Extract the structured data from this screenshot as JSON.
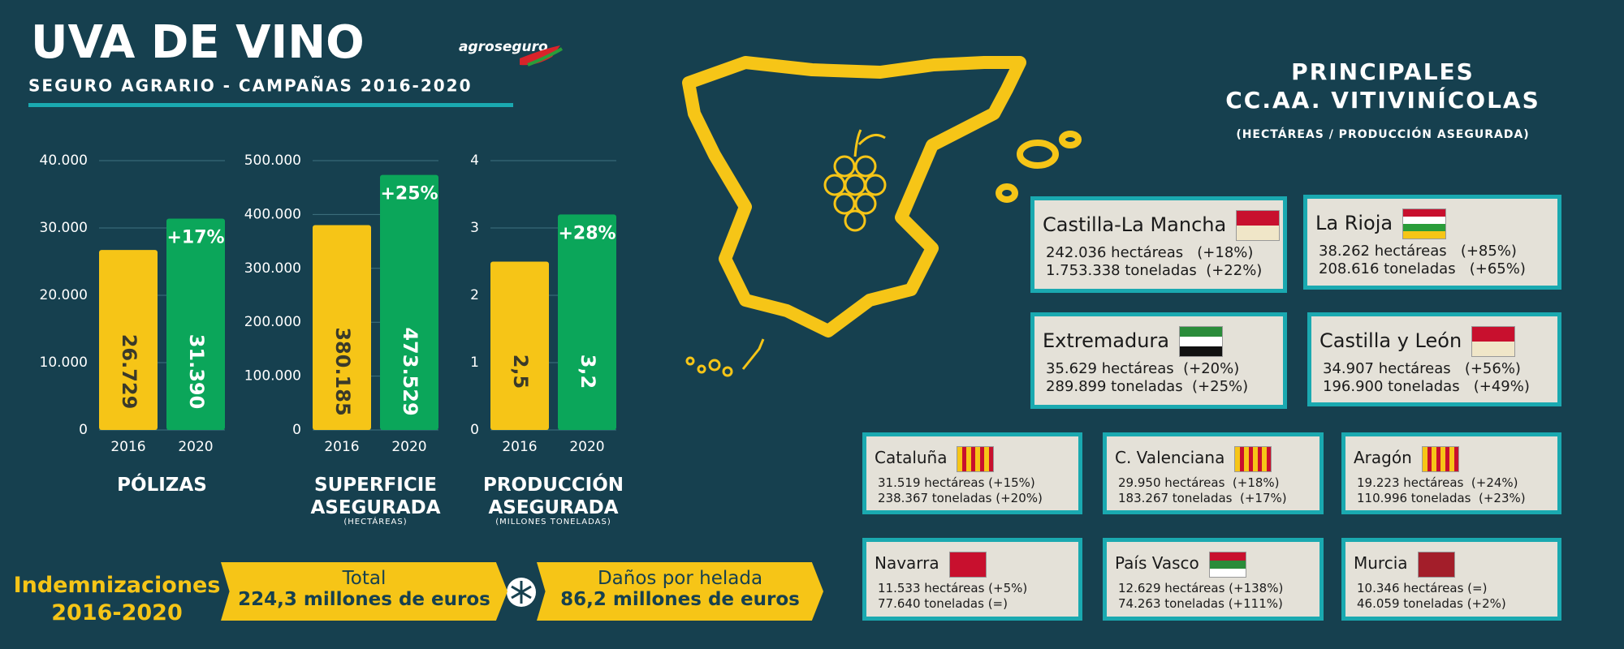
{
  "header": {
    "title": "UVA DE VINO",
    "subtitle": "SEGURO AGRARIO - CAMPAÑAS 2016-2020",
    "logo": "agroseguro"
  },
  "chart_data": [
    {
      "type": "bar",
      "title": "PÓLIZAS",
      "categories": [
        "2016",
        "2020"
      ],
      "values": [
        26729,
        31390
      ],
      "value_labels": [
        "26.729",
        "31.390"
      ],
      "colors": [
        "#f6c517",
        "#0ba65a"
      ],
      "annotation": "+17%",
      "ylim": [
        0,
        40000
      ],
      "yticks": [
        0,
        {
          "value": 10000,
          "label": "10.000"
        },
        {
          "value": 20000,
          "label": "20.000"
        },
        {
          "value": 30000,
          "label": "30.000"
        },
        {
          "value": 40000,
          "label": "40.000"
        }
      ],
      "grid": true
    },
    {
      "type": "bar",
      "title": "SUPERFICIE ASEGURADA",
      "subtitle": "(HECTÁREAS)",
      "categories": [
        "2016",
        "2020"
      ],
      "values": [
        380185,
        473529
      ],
      "value_labels": [
        "380.185",
        "473.529"
      ],
      "colors": [
        "#f6c517",
        "#0ba65a"
      ],
      "annotation": "+25%",
      "ylim": [
        0,
        500000
      ],
      "yticks": [
        0,
        {
          "value": 100000,
          "label": "100.000"
        },
        {
          "value": 200000,
          "label": "200.000"
        },
        {
          "value": 300000,
          "label": "300.000"
        },
        {
          "value": 400000,
          "label": "400.000"
        },
        {
          "value": 500000,
          "label": "500.000"
        }
      ],
      "grid": true
    },
    {
      "type": "bar",
      "title": "PRODUCCIÓN ASEGURADA",
      "subtitle": "(MILLONES TONELADAS)",
      "categories": [
        "2016",
        "2020"
      ],
      "values": [
        2.5,
        3.2
      ],
      "value_labels": [
        "2,5",
        "3,2"
      ],
      "colors": [
        "#f6c517",
        "#0ba65a"
      ],
      "annotation": "+28%",
      "ylim": [
        0,
        4
      ],
      "yticks": [
        0,
        1,
        2,
        3,
        4
      ],
      "grid": true
    }
  ],
  "indemnizaciones": {
    "title": "Indemnizaciones 2016-2020",
    "boxes": [
      {
        "label": "Total",
        "value": "224,3 millones de euros"
      },
      {
        "label": "Daños por helada",
        "value": "86,2 millones de euros"
      }
    ]
  },
  "regions_panel": {
    "title": "PRINCIPALES CC.AA. VITIVINÍCOLAS",
    "subtitle": "(HECTÁREAS / PRODUCCIÓN ASEGURADA)",
    "regions": [
      {
        "name": "Castilla-La Mancha",
        "hectareas": "242.036 hectáreas   (+18%)",
        "toneladas": "1.753.338 toneladas  (+22%)"
      },
      {
        "name": "La Rioja",
        "hectareas": "38.262 hectáreas   (+85%)",
        "toneladas": "208.616 toneladas   (+65%)"
      },
      {
        "name": "Extremadura",
        "hectareas": "35.629 hectáreas  (+20%)",
        "toneladas": "289.899 toneladas  (+25%)"
      },
      {
        "name": "Castilla y León",
        "hectareas": "34.907 hectáreas   (+56%)",
        "toneladas": "196.900 toneladas   (+49%)"
      },
      {
        "name": "Cataluña",
        "hectareas": "31.519 hectáreas (+15%)",
        "toneladas": "238.367 toneladas (+20%)"
      },
      {
        "name": "C. Valenciana",
        "hectareas": "29.950 hectáreas  (+18%)",
        "toneladas": "183.267 toneladas  (+17%)"
      },
      {
        "name": "Aragón",
        "hectareas": "19.223 hectáreas  (+24%)",
        "toneladas": "110.996 toneladas  (+23%)"
      },
      {
        "name": "Navarra",
        "hectareas": "11.533 hectáreas (+5%)",
        "toneladas": "77.640 toneladas (=)"
      },
      {
        "name": "País Vasco",
        "hectareas": "12.629 hectáreas (+138%)",
        "toneladas": "74.263 toneladas (+111%)"
      },
      {
        "name": "Murcia",
        "hectareas": "10.346 hectáreas (=)",
        "toneladas": "46.059 toneladas (+2%)"
      }
    ]
  }
}
